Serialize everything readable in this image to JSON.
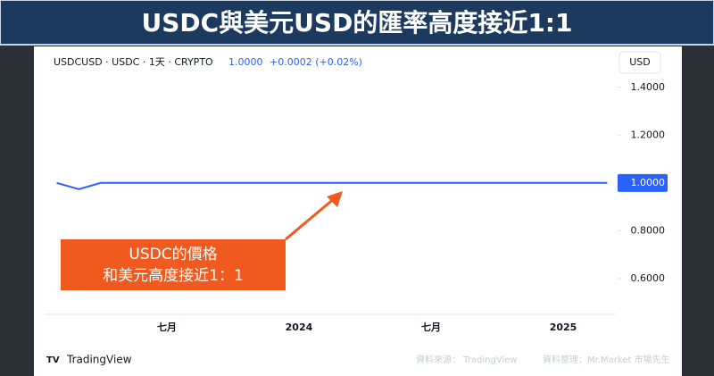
{
  "banner_title": "USDC與美元USD的匯率高度接近1:1",
  "chart_data": {
    "type": "line",
    "symbol": "USDCUSD · USDC · 1天 · CRYPTO",
    "price": "1.0000",
    "change": "+0.0002 (+0.02%)",
    "currency": "USD",
    "price_tag": "1.0000",
    "categories": [
      null,
      null,
      null,
      null,
      null,
      "七月",
      null,
      null,
      null,
      null,
      null,
      "2024",
      null,
      null,
      null,
      null,
      null,
      "七月",
      null,
      null,
      null,
      null,
      null,
      "2025",
      null,
      null
    ],
    "values": [
      1.0,
      0.974,
      1.0,
      1.0,
      1.0,
      1.0,
      1.0,
      1.0,
      1.0,
      1.0,
      1.0,
      1.0,
      1.0,
      1.0,
      1.0,
      1.0,
      1.0,
      1.0,
      1.0,
      1.0,
      1.0,
      1.0,
      1.0,
      1.0,
      1.0,
      1.0
    ],
    "color": "#2962ff",
    "ylim": [
      0.48,
      1.5
    ],
    "yticks": [
      {
        "value": 0.6,
        "label": "0.6000"
      },
      {
        "value": 0.8,
        "label": "0.8000"
      },
      {
        "value": 1.0,
        "label": "1.0000"
      },
      {
        "value": 1.2,
        "label": "1.2000"
      },
      {
        "value": 1.4,
        "label": "1.4000"
      }
    ],
    "annotation": [
      "USDC的價格",
      "和美元高度接近1：1"
    ]
  },
  "footer": {
    "brand": "TradingView",
    "source": "資料來源： TradingView",
    "compiled": "資料整理：Mr.Market 市場先生"
  }
}
